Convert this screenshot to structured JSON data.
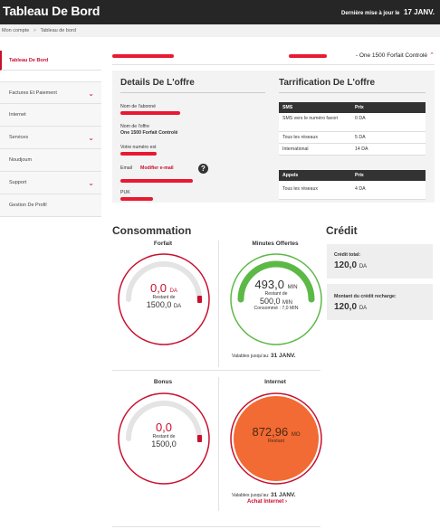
{
  "header": {
    "title": "Tableau De Bord",
    "update_label": "Dernière mise à jour le",
    "update_date": "17 JANV."
  },
  "breadcrumb": {
    "items": [
      "Mon compte",
      "Tableau de bord"
    ],
    "separator": ">"
  },
  "sidebar": {
    "items": [
      {
        "label": "Tableau De Bord"
      },
      {
        "label": "Factures Et Paiement"
      },
      {
        "label": "Internet"
      },
      {
        "label": "Services"
      },
      {
        "label": "Noudjoum"
      },
      {
        "label": "Support"
      },
      {
        "label": "Gestion De Profil"
      }
    ]
  },
  "account_row": {
    "plan": "- One 1500 Forfait Controlé"
  },
  "offer": {
    "title": "Details De L'offre",
    "subscriber_name_label": "Nom de l'abonné",
    "offer_name_label": "Nom de l'offre",
    "offer_name_value": "One 1500 Forfait Controlé",
    "number_label": "Votre numéro est",
    "email_label": "Email",
    "email_link": "Modifier e-mail",
    "help_icon": "?",
    "puk_label": "PUK"
  },
  "pricing": {
    "title": "Tarrification De L'offre",
    "sms_table": {
      "headers": [
        "SMS",
        "Prix"
      ],
      "rows": [
        [
          "SMS vers le numéro favori",
          "0 DA"
        ],
        [
          "Tous les réseaux",
          "5 DA"
        ],
        [
          "International",
          "14 DA"
        ]
      ]
    },
    "calls_table": {
      "headers": [
        "Appels",
        "Prix"
      ],
      "rows": [
        [
          "Tous les réseaux",
          "4 DA"
        ]
      ]
    }
  },
  "consumption": {
    "title": "Consommation",
    "forfait": {
      "title": "Forfait",
      "value": "0,0",
      "unit": "DA",
      "remaining_label": "Restant de",
      "remaining_value": "1500,0",
      "remaining_unit": "DA",
      "fill_fraction": 0.0
    },
    "minutes": {
      "title": "Minutes Offertes",
      "value": "493,0",
      "unit": "MIN",
      "remaining_label": "Restant de",
      "remaining_value": "500,0",
      "remaining_unit": "MIN",
      "consumed_label": "Consommé : 7,0 MIN",
      "validity_label": "Valables jusqu'au:",
      "validity_date": "31 JANV.",
      "fill_fraction": 0.986
    },
    "bonus": {
      "title": "Bonus",
      "value": "0,0",
      "remaining_label": "Restant de",
      "remaining_value": "1500,0",
      "fill_fraction": 0.0
    },
    "internet": {
      "title": "Internet",
      "value": "872,96",
      "unit": "MO",
      "remaining_label": "Restant",
      "validity_label": "Valables jusqu'au:",
      "validity_date": "31 JANV.",
      "buy_link": "Achat Internet",
      "chevron": "›"
    }
  },
  "credit": {
    "title": "Crédit",
    "total_label": "Crédit total:",
    "total_value": "120,0",
    "total_unit": "DA",
    "recharge_label": "Montant du crédit recharge:",
    "recharge_value": "120,0",
    "recharge_unit": "DA"
  },
  "colors": {
    "accent": "#c8102e",
    "green": "#5cb946",
    "orange": "#f26a34",
    "dark": "#262626"
  }
}
